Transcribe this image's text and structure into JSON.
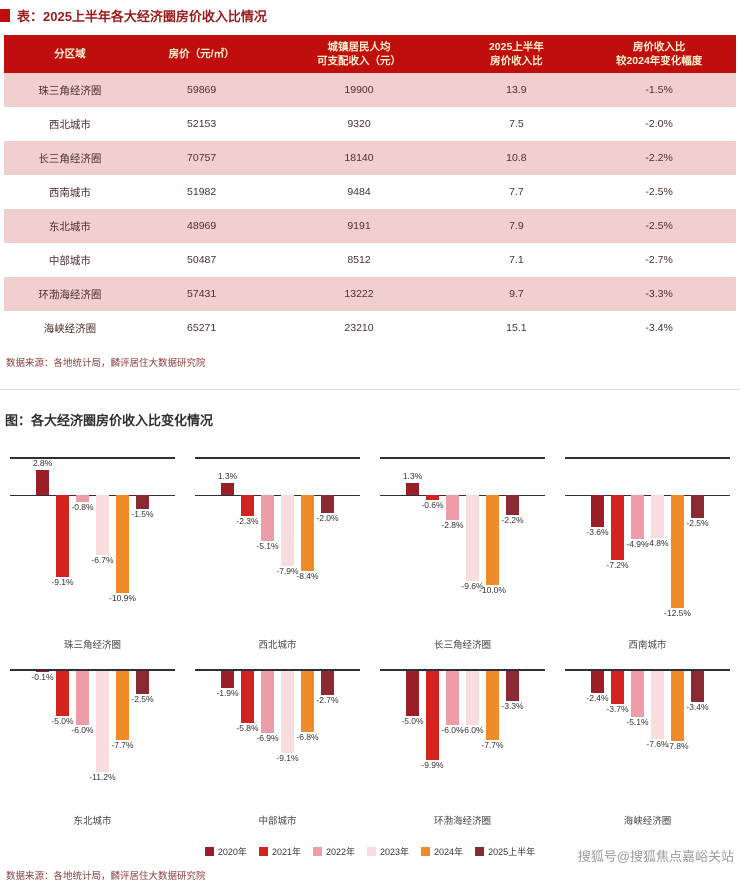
{
  "table_section": {
    "title": "表：2025上半年各大经济圈房价收入比情况",
    "columns": [
      "分区域",
      "房价（元/㎡）",
      "城镇居民人均\n可支配收入（元）",
      "2025上半年\n房价收入比",
      "房价收入比\n较2024年变化幅度"
    ],
    "rows": [
      [
        "珠三角经济圈",
        "59869",
        "19900",
        "13.9",
        "-1.5%"
      ],
      [
        "西北城市",
        "52153",
        "9320",
        "7.5",
        "-2.0%"
      ],
      [
        "长三角经济圈",
        "70757",
        "18140",
        "10.8",
        "-2.2%"
      ],
      [
        "西南城市",
        "51982",
        "9484",
        "7.7",
        "-2.5%"
      ],
      [
        "东北城市",
        "48969",
        "9191",
        "7.9",
        "-2.5%"
      ],
      [
        "中部城市",
        "50487",
        "8512",
        "7.1",
        "-2.7%"
      ],
      [
        "环渤海经济圈",
        "57431",
        "13222",
        "9.7",
        "-3.3%"
      ],
      [
        "海峡经济圈",
        "65271",
        "23210",
        "15.1",
        "-3.4%"
      ]
    ],
    "source": "数据来源：各地统计局，麟评居住大数据研究院"
  },
  "chart_section": {
    "title": "图：各大经济圈房价收入比变化情况",
    "source": "数据来源：各地统计局，麟评居住大数据研究院"
  },
  "chart_data": {
    "type": "bar",
    "title": "各大经济圈房价收入比变化情况",
    "unit": "%",
    "legend_position": "bottom",
    "categories": [
      "2020年",
      "2021年",
      "2022年",
      "2023年",
      "2024年",
      "2025上半年"
    ],
    "series_colors": [
      "#9a1e28",
      "#d2231e",
      "#ee9ca8",
      "#f8dcde",
      "#f08b2a",
      "#8c2a33"
    ],
    "ylim_row1": [
      -12.5,
      2.8
    ],
    "ylim_row2": [
      -11.2,
      0
    ],
    "charts": [
      {
        "region": "珠三角经济圈",
        "values": [
          2.8,
          -9.1,
          -0.8,
          -6.7,
          -10.9,
          -1.5
        ]
      },
      {
        "region": "西北城市",
        "values": [
          1.3,
          -2.3,
          -5.1,
          -7.9,
          -8.4,
          -2.0
        ]
      },
      {
        "region": "长三角经济圈",
        "values": [
          1.3,
          -0.6,
          -2.8,
          -9.6,
          -10.0,
          -2.2
        ]
      },
      {
        "region": "西南城市",
        "values": [
          -3.6,
          -7.2,
          -4.9,
          -4.8,
          -12.5,
          -2.5
        ]
      },
      {
        "region": "东北城市",
        "values": [
          -0.1,
          -5.0,
          -6.0,
          -11.2,
          -7.7,
          -2.5
        ]
      },
      {
        "region": "中部城市",
        "values": [
          -1.9,
          -5.8,
          -6.9,
          -9.1,
          -6.8,
          -2.7
        ]
      },
      {
        "region": "环渤海经济圈",
        "values": [
          -5.0,
          -9.9,
          -6.0,
          -6.0,
          -7.7,
          -3.3
        ]
      },
      {
        "region": "海峡经济圈",
        "values": [
          -2.4,
          -3.7,
          -5.1,
          -7.6,
          -7.8,
          -3.4
        ]
      }
    ]
  },
  "watermark": "搜狐号@搜狐焦点嘉峪关站",
  "colors": {
    "table_header_bg": "#c00d0d",
    "table_header_text": "#fdf2d0",
    "table_stripe": "#f1cfcf",
    "accent_red": "#c00d0d",
    "axis_line": "#2e2e3e"
  }
}
